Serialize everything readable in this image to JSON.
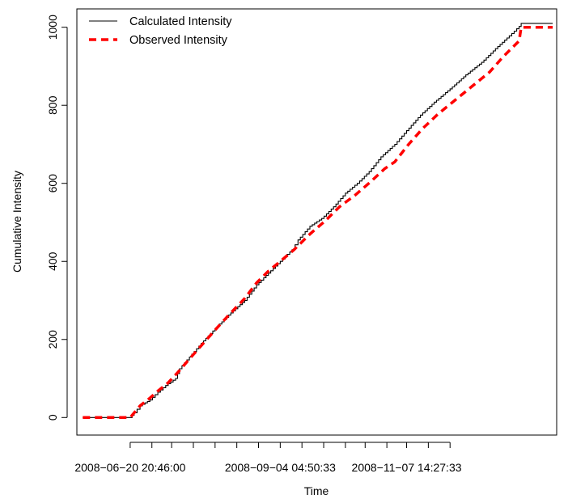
{
  "chart_data": {
    "type": "line",
    "title": "",
    "xlabel": "Time",
    "ylabel": "Cumulative Intensity",
    "xlim": [
      "2008-05-24",
      "2009-01-22"
    ],
    "ylim": [
      -45,
      1047
    ],
    "x_tick_dates": [
      "2008-06-20",
      "2008-07-01",
      "2008-07-11",
      "2008-07-22",
      "2008-08-02",
      "2008-08-13",
      "2008-08-24",
      "2008-09-04",
      "2008-09-15",
      "2008-09-26",
      "2008-10-07",
      "2008-10-17",
      "2008-10-28",
      "2008-11-07",
      "2008-11-18",
      "2008-11-29"
    ],
    "x_tick_labels": [
      {
        "date": "2008-06-20",
        "text": "2008−06−20 20:46:00"
      },
      {
        "date": "2008-09-04",
        "text": "2008−09−04 04:50:33"
      },
      {
        "date": "2008-11-07",
        "text": "2008−11−07 14:27:33"
      }
    ],
    "y_ticks": [
      0,
      200,
      400,
      600,
      800,
      1000
    ],
    "grid": false,
    "legend_position": "top-left",
    "series": [
      {
        "name": "Calculated Intensity",
        "color": "#000000",
        "style": "solid-step",
        "points": [
          [
            "2008-05-27",
            0
          ],
          [
            "2008-06-20",
            0
          ],
          [
            "2008-06-22",
            12
          ],
          [
            "2008-06-25",
            30
          ],
          [
            "2008-06-30",
            45
          ],
          [
            "2008-07-04",
            65
          ],
          [
            "2008-07-08",
            82
          ],
          [
            "2008-07-13",
            100
          ],
          [
            "2008-07-15",
            125
          ],
          [
            "2008-07-20",
            155
          ],
          [
            "2008-07-26",
            190
          ],
          [
            "2008-08-02",
            228
          ],
          [
            "2008-08-10",
            268
          ],
          [
            "2008-08-17",
            300
          ],
          [
            "2008-08-23",
            340
          ],
          [
            "2008-08-29",
            370
          ],
          [
            "2008-09-04",
            400
          ],
          [
            "2008-09-10",
            430
          ],
          [
            "2008-09-13",
            455
          ],
          [
            "2008-09-19",
            490
          ],
          [
            "2008-09-25",
            510
          ],
          [
            "2008-10-01",
            540
          ],
          [
            "2008-10-07",
            575
          ],
          [
            "2008-10-13",
            600
          ],
          [
            "2008-10-19",
            630
          ],
          [
            "2008-10-25",
            668
          ],
          [
            "2008-11-01",
            700
          ],
          [
            "2008-11-07",
            735
          ],
          [
            "2008-11-14",
            775
          ],
          [
            "2008-11-21",
            808
          ],
          [
            "2008-11-29",
            842
          ],
          [
            "2008-12-07",
            878
          ],
          [
            "2008-12-15",
            910
          ],
          [
            "2008-12-22",
            945
          ],
          [
            "2008-12-29",
            978
          ],
          [
            "2009-01-03",
            1002
          ],
          [
            "2009-01-04",
            1010
          ],
          [
            "2009-01-20",
            1010
          ]
        ]
      },
      {
        "name": "Observed Intensity",
        "color": "#ff0000",
        "style": "dashed",
        "points": [
          [
            "2008-05-27",
            0
          ],
          [
            "2008-06-20",
            0
          ],
          [
            "2008-06-22",
            12
          ],
          [
            "2008-06-25",
            30
          ],
          [
            "2008-06-30",
            50
          ],
          [
            "2008-07-04",
            68
          ],
          [
            "2008-07-09",
            88
          ],
          [
            "2008-07-14",
            115
          ],
          [
            "2008-07-20",
            150
          ],
          [
            "2008-07-27",
            190
          ],
          [
            "2008-08-03",
            230
          ],
          [
            "2008-08-10",
            268
          ],
          [
            "2008-08-17",
            305
          ],
          [
            "2008-08-23",
            345
          ],
          [
            "2008-08-29",
            375
          ],
          [
            "2008-09-04",
            400
          ],
          [
            "2008-09-11",
            430
          ],
          [
            "2008-09-19",
            470
          ],
          [
            "2008-09-27",
            505
          ],
          [
            "2008-10-04",
            540
          ],
          [
            "2008-10-12",
            570
          ],
          [
            "2008-10-20",
            605
          ],
          [
            "2008-10-27",
            638
          ],
          [
            "2008-11-01",
            655
          ],
          [
            "2008-11-08",
            700
          ],
          [
            "2008-11-15",
            740
          ],
          [
            "2008-11-23",
            778
          ],
          [
            "2008-12-02",
            815
          ],
          [
            "2008-12-10",
            848
          ],
          [
            "2008-12-19",
            885
          ],
          [
            "2008-12-26",
            925
          ],
          [
            "2009-01-03",
            965
          ],
          [
            "2009-01-04",
            1000
          ],
          [
            "2009-01-20",
            1000
          ]
        ]
      }
    ]
  }
}
